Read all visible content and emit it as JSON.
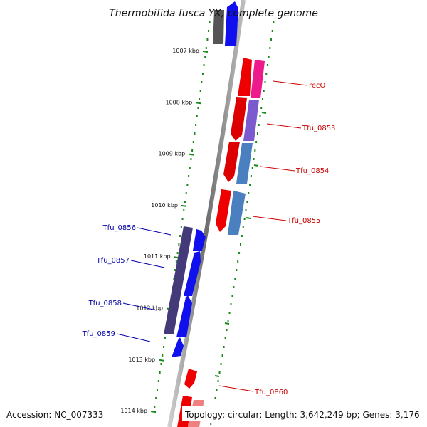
{
  "title": "Thermobifida fusca YX, complete genome",
  "footer": {
    "accession": "Accession: NC_007333",
    "topology": "Topology: circular; Length: 3,642,249 bp; Genes: 3,176"
  },
  "colors": {
    "backbone": "#8c8c8c",
    "forward_strand": "#e00000",
    "reverse_strand": "#0000e0",
    "forward_label": "#cc0000",
    "reverse_label": "#0000aa",
    "tick_marks": "#1a8a1a"
  },
  "ticks": [
    {
      "kbp": 1007,
      "label": "1007 kbp"
    },
    {
      "kbp": 1008,
      "label": "1008 kbp"
    },
    {
      "kbp": 1009,
      "label": "1009 kbp"
    },
    {
      "kbp": 1010,
      "label": "1010 kbp"
    },
    {
      "kbp": 1011,
      "label": "1011 kbp"
    },
    {
      "kbp": 1012,
      "label": "1012 kbp"
    },
    {
      "kbp": 1013,
      "label": "1013 kbp"
    },
    {
      "kbp": 1014,
      "label": "1014 kbp"
    }
  ],
  "genes": [
    {
      "name": "recO",
      "strand": "forward"
    },
    {
      "name": "Tfu_0853",
      "strand": "forward"
    },
    {
      "name": "Tfu_0854",
      "strand": "forward"
    },
    {
      "name": "Tfu_0855",
      "strand": "forward"
    },
    {
      "name": "Tfu_0856",
      "strand": "reverse"
    },
    {
      "name": "Tfu_0857",
      "strand": "reverse"
    },
    {
      "name": "Tfu_0858",
      "strand": "reverse"
    },
    {
      "name": "Tfu_0859",
      "strand": "reverse"
    },
    {
      "name": "Tfu_0860",
      "strand": "forward"
    }
  ]
}
